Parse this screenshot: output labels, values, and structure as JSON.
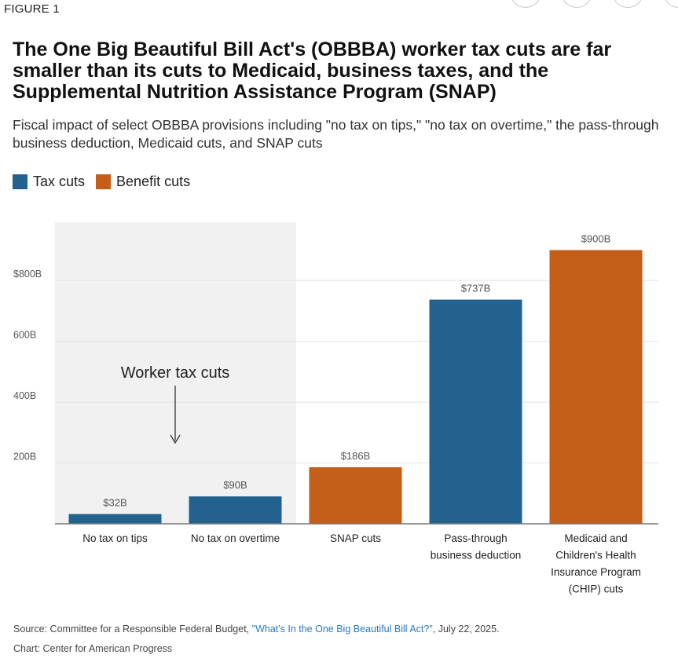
{
  "figure_label": "FIGURE 1",
  "title": "The One Big Beautiful Bill Act's (OBBBA) worker tax cuts are far smaller than its cuts to Medicaid, business taxes, and the Supplemental Nutrition Assistance Program (SNAP)",
  "subtitle": "Fiscal impact of select OBBBA provisions including \"no tax on tips,\" \"no tax on overtime,\" the pass-through business deduction, Medicaid cuts, and SNAP cuts",
  "legend": [
    {
      "label": "Tax cuts",
      "color": "#23628f"
    },
    {
      "label": "Benefit cuts",
      "color": "#c45e19"
    }
  ],
  "colors": {
    "tax": "#23628f",
    "benefit": "#c45e19",
    "highlight_band": "#f1f1f1",
    "gridline": "#e4e4e4",
    "axis": "#777777"
  },
  "chart_data": {
    "type": "bar",
    "title": "The One Big Beautiful Bill Act's (OBBBA) worker tax cuts are far smaller than its cuts to Medicaid, business taxes, and the Supplemental Nutrition Assistance Program (SNAP)",
    "xlabel": "",
    "ylabel": "",
    "ylim": [
      0,
      900
    ],
    "yticks": [
      200,
      400,
      600,
      800
    ],
    "ytick_labels": [
      "200B",
      "400B",
      "600B",
      "$800B"
    ],
    "categories": [
      "No tax on tips",
      "No tax on overtime",
      "SNAP cuts",
      "Pass-through business deduction",
      "Medicaid and Children's Health Insurance Program (CHIP) cuts"
    ],
    "category_label_lines": [
      [
        "No tax on tips"
      ],
      [
        "No tax on overtime"
      ],
      [
        "SNAP cuts"
      ],
      [
        "Pass-through",
        "business deduction"
      ],
      [
        "Medicaid and",
        "Children's Health",
        "Insurance Program",
        "(CHIP) cuts"
      ]
    ],
    "values": [
      32,
      90,
      186,
      737,
      900
    ],
    "value_labels": [
      "$32B",
      "$90B",
      "$186B",
      "$737B",
      "$900B"
    ],
    "groups": [
      "Tax cuts",
      "Tax cuts",
      "Benefit cuts",
      "Tax cuts",
      "Benefit cuts"
    ],
    "highlight": {
      "categories": [
        "No tax on tips",
        "No tax on overtime"
      ],
      "annotation": "Worker tax cuts"
    },
    "gridlines": true,
    "legend_position": "top-left"
  },
  "footer": {
    "source_prefix": "Source: Committee for a Responsible Federal Budget, ",
    "source_link": "\"What's In the One Big Beautiful Bill Act?\"",
    "source_suffix": ", July 22, 2025.",
    "credit": "Chart: Center for American Progress"
  }
}
